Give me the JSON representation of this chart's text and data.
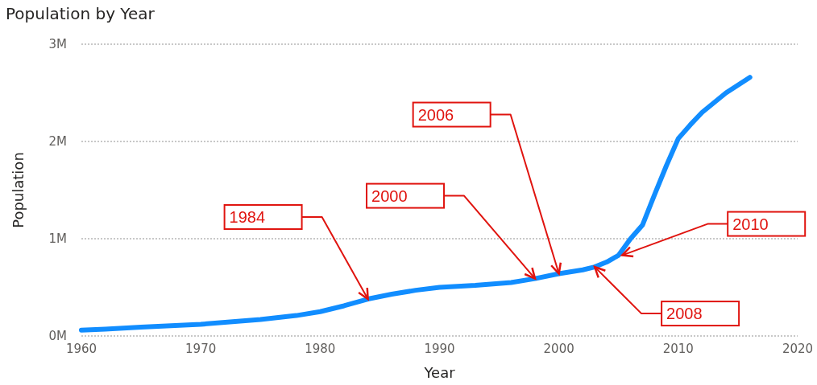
{
  "chart_data": {
    "type": "line",
    "title": "Population by Year",
    "xlabel": "Year",
    "ylabel": "Population",
    "x": [
      1960,
      1962,
      1965,
      1970,
      1975,
      1978,
      1980,
      1982,
      1984,
      1986,
      1988,
      1990,
      1993,
      1996,
      1998,
      2000,
      2002,
      2003,
      2004,
      2005,
      2006,
      2007,
      2008,
      2009,
      2010,
      2011,
      2012,
      2014,
      2016
    ],
    "series": [
      {
        "color": "#118dff",
        "values": [
          60000,
          70000,
          90000,
          120000,
          170000,
          210000,
          250000,
          310000,
          380000,
          430000,
          470000,
          500000,
          520000,
          550000,
          590000,
          640000,
          680000,
          710000,
          760000,
          830000,
          1000000,
          1140000,
          1450000,
          1750000,
          2030000,
          2170000,
          2300000,
          2500000,
          2660000
        ]
      }
    ],
    "xlim": [
      1960,
      2020
    ],
    "xticks": [
      1960,
      1970,
      1980,
      1990,
      2000,
      2010,
      2020
    ],
    "ylim": [
      0,
      3000000
    ],
    "yticks": [
      {
        "value": 0,
        "label": "0M"
      },
      {
        "value": 1000000,
        "label": "1M"
      },
      {
        "value": 2000000,
        "label": "2M"
      },
      {
        "value": 3000000,
        "label": "3M"
      }
    ],
    "grid": "y",
    "marker": "none",
    "line_style": "solid",
    "annotations": [
      "1984",
      "2000",
      "2006",
      {
        "text": "2010",
        "x": 2005.3,
        "y": 830000
      },
      {
        "text": "2008",
        "x": 2003,
        "y": 710000
      }
    ]
  }
}
